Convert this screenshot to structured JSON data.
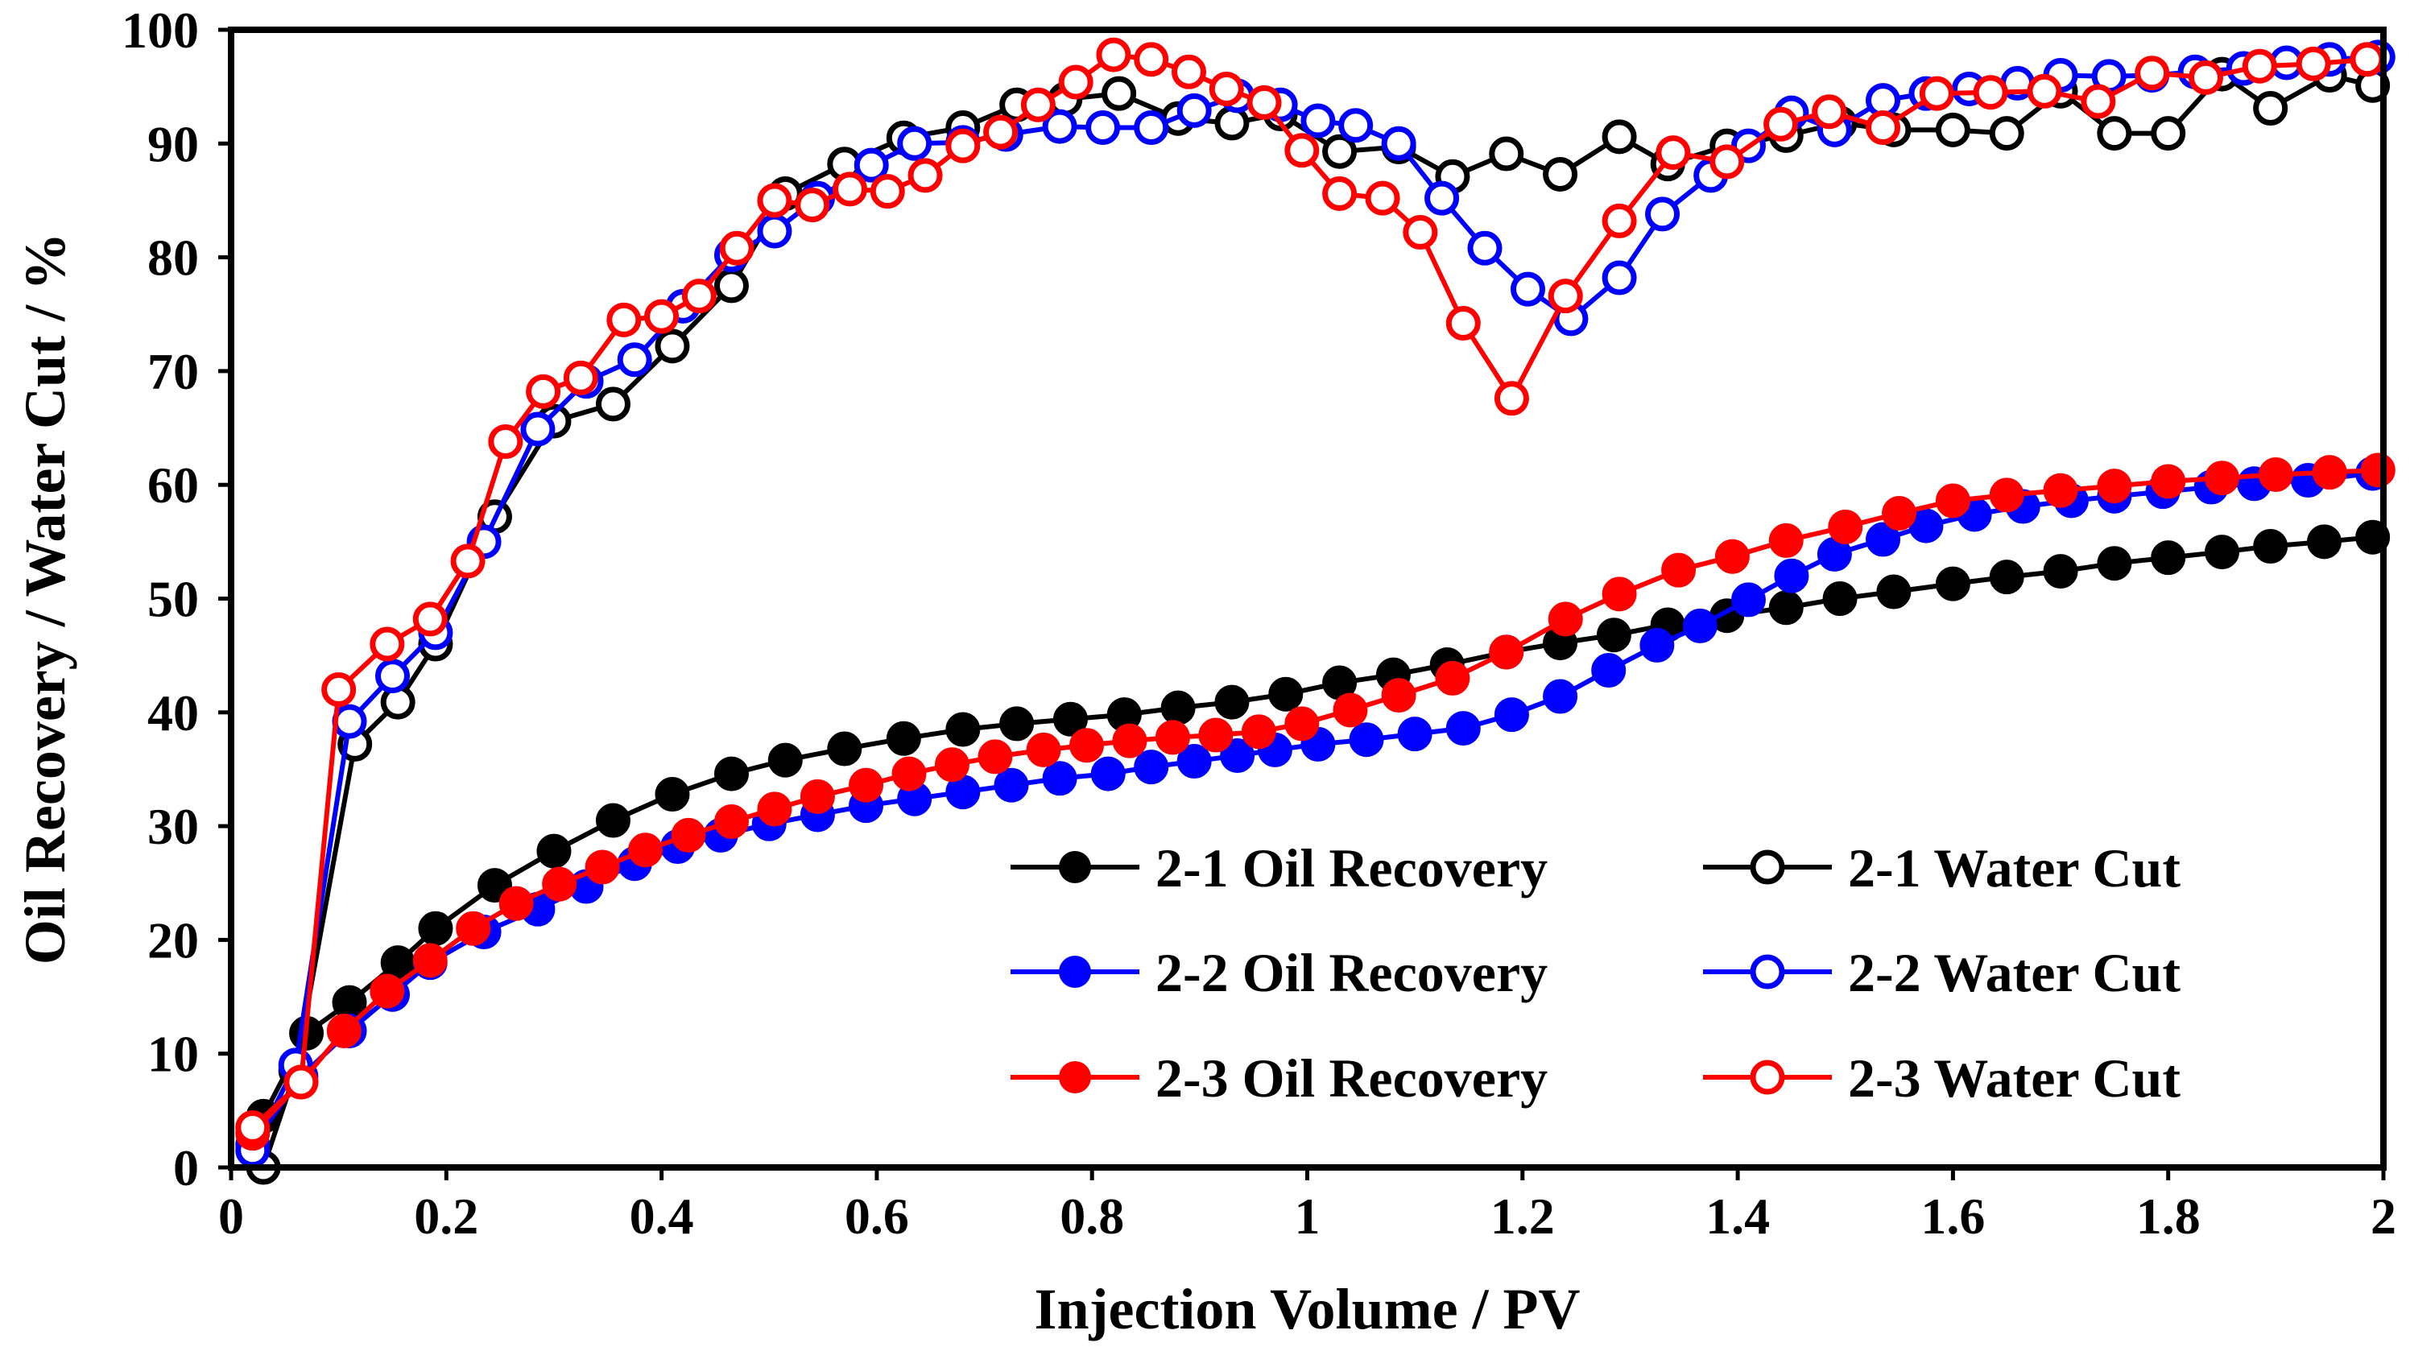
{
  "chart_data": {
    "type": "line",
    "title": "",
    "xlabel": "Injection Volume / PV",
    "ylabel": "Oil Recovery / Water Cut / %",
    "xlim": [
      0,
      2
    ],
    "ylim": [
      0,
      100
    ],
    "xticks": [
      0,
      0.2,
      0.4,
      0.6,
      0.8,
      1,
      1.2,
      1.4,
      1.6,
      1.8,
      2
    ],
    "xtick_labels": [
      "0",
      "0.2",
      "0.4",
      "0.6",
      "0.8",
      "1",
      "1.2",
      "1.4",
      "1.6",
      "1.8",
      "2"
    ],
    "yticks": [
      0,
      10,
      20,
      30,
      40,
      50,
      60,
      70,
      80,
      90,
      100
    ],
    "ytick_labels": [
      "0",
      "10",
      "20",
      "30",
      "40",
      "50",
      "60",
      "70",
      "80",
      "90",
      "100"
    ],
    "grid": false,
    "legend": "bottom-right",
    "series": [
      {
        "name": "2-1 Oil Recovery",
        "color": "#000000",
        "marker": "filled",
        "x": [
          0.03,
          0.07,
          0.11,
          0.155,
          0.19,
          0.245,
          0.3,
          0.355,
          0.41,
          0.465,
          0.515,
          0.57,
          0.625,
          0.68,
          0.73,
          0.78,
          0.83,
          0.88,
          0.93,
          0.98,
          1.03,
          1.08,
          1.13,
          1.185,
          1.235,
          1.285,
          1.335,
          1.39,
          1.445,
          1.495,
          1.545,
          1.6,
          1.65,
          1.7,
          1.75,
          1.8,
          1.85,
          1.895,
          1.945,
          1.99
        ],
        "y": [
          4.5,
          11.8,
          14.5,
          18,
          21,
          24.8,
          27.8,
          30.5,
          32.8,
          34.6,
          35.8,
          36.8,
          37.7,
          38.5,
          39,
          39.4,
          39.8,
          40.4,
          40.9,
          41.6,
          42.6,
          43.3,
          44.2,
          45.3,
          46.1,
          46.8,
          47.7,
          48.5,
          49.2,
          50,
          50.6,
          51.3,
          51.9,
          52.4,
          53.1,
          53.6,
          54.1,
          54.6,
          55,
          55.4
        ]
      },
      {
        "name": "2-1 Water Cut",
        "color": "#000000",
        "marker": "open",
        "x": [
          0.03,
          0.06,
          0.115,
          0.155,
          0.19,
          0.245,
          0.3,
          0.355,
          0.41,
          0.465,
          0.515,
          0.57,
          0.625,
          0.68,
          0.73,
          0.775,
          0.825,
          0.88,
          0.93,
          0.975,
          1.03,
          1.085,
          1.135,
          1.185,
          1.235,
          1.29,
          1.335,
          1.39,
          1.445,
          1.495,
          1.545,
          1.6,
          1.65,
          1.7,
          1.75,
          1.8,
          1.85,
          1.895,
          1.95,
          1.99
        ],
        "y": [
          0,
          8.5,
          37.2,
          40.9,
          46,
          57.2,
          65.6,
          67.1,
          72.2,
          77.5,
          85.6,
          88.2,
          90.5,
          91.4,
          93.4,
          93.9,
          94.4,
          92.2,
          91.8,
          92.6,
          89.3,
          89.7,
          87.1,
          89.1,
          87.3,
          90.6,
          88.2,
          89.8,
          90.7,
          91.8,
          91.2,
          91.2,
          90.9,
          94.6,
          90.9,
          90.9,
          96.1,
          93.1,
          96,
          95.1
        ]
      },
      {
        "name": "2-2 Oil Recovery",
        "color": "#0000ff",
        "marker": "filled",
        "x": [
          0.02,
          0.065,
          0.11,
          0.15,
          0.185,
          0.235,
          0.285,
          0.33,
          0.375,
          0.415,
          0.455,
          0.5,
          0.545,
          0.59,
          0.635,
          0.68,
          0.725,
          0.77,
          0.815,
          0.855,
          0.895,
          0.935,
          0.97,
          1.01,
          1.055,
          1.1,
          1.145,
          1.19,
          1.235,
          1.28,
          1.325,
          1.365,
          1.41,
          1.45,
          1.49,
          1.535,
          1.575,
          1.62,
          1.665,
          1.71,
          1.75,
          1.795,
          1.84,
          1.88,
          1.93,
          1.99
        ],
        "y": [
          2,
          8,
          12,
          15.2,
          18,
          20.7,
          22.7,
          24.7,
          26.7,
          28.2,
          29.2,
          30.2,
          31,
          31.8,
          32.4,
          33,
          33.6,
          34.2,
          34.6,
          35.2,
          35.7,
          36.2,
          36.7,
          37.2,
          37.6,
          38.1,
          38.6,
          39.8,
          41.4,
          43.7,
          45.9,
          47.6,
          49.9,
          52,
          53.9,
          55.2,
          56.4,
          57.4,
          58.1,
          58.6,
          59,
          59.4,
          59.8,
          60.1,
          60.4,
          61
        ]
      },
      {
        "name": "2-2 Water Cut",
        "color": "#0000ff",
        "marker": "open",
        "x": [
          0.02,
          0.06,
          0.11,
          0.15,
          0.19,
          0.235,
          0.285,
          0.33,
          0.375,
          0.42,
          0.465,
          0.505,
          0.545,
          0.595,
          0.635,
          0.68,
          0.72,
          0.77,
          0.81,
          0.855,
          0.895,
          0.935,
          0.975,
          1.01,
          1.045,
          1.085,
          1.125,
          1.165,
          1.205,
          1.245,
          1.29,
          1.33,
          1.375,
          1.41,
          1.45,
          1.49,
          1.535,
          1.575,
          1.615,
          1.66,
          1.7,
          1.745,
          1.785,
          1.825,
          1.87,
          1.91,
          1.95,
          1.995
        ],
        "y": [
          1.5,
          9,
          39.2,
          43.2,
          47,
          55,
          64.9,
          69.1,
          71,
          75.7,
          80.2,
          82.3,
          85.2,
          88.1,
          90,
          90.1,
          90.8,
          91.5,
          91.4,
          91.4,
          92.9,
          94.2,
          93.4,
          92,
          91.6,
          90,
          85.2,
          80.8,
          77.2,
          74.6,
          78.2,
          83.8,
          87.2,
          89.8,
          92.7,
          91.2,
          93.8,
          94.4,
          94.8,
          95.3,
          96,
          95.9,
          96,
          96.3,
          96.6,
          97.1,
          97.4,
          97.6
        ]
      },
      {
        "name": "2-3 Oil Recovery",
        "color": "#ff0000",
        "marker": "filled",
        "x": [
          0.02,
          0.065,
          0.105,
          0.145,
          0.185,
          0.225,
          0.265,
          0.305,
          0.345,
          0.385,
          0.425,
          0.465,
          0.505,
          0.545,
          0.59,
          0.63,
          0.67,
          0.71,
          0.755,
          0.795,
          0.835,
          0.875,
          0.915,
          0.955,
          0.995,
          1.04,
          1.085,
          1.135,
          1.185,
          1.24,
          1.29,
          1.345,
          1.395,
          1.445,
          1.5,
          1.55,
          1.6,
          1.65,
          1.7,
          1.75,
          1.8,
          1.85,
          1.9,
          1.95,
          1.995
        ],
        "y": [
          3,
          7.5,
          12,
          15.5,
          18.2,
          21,
          23.2,
          24.9,
          26.4,
          27.9,
          29.2,
          30.4,
          31.5,
          32.6,
          33.6,
          34.6,
          35.4,
          36.1,
          36.7,
          37.1,
          37.5,
          37.8,
          38,
          38.3,
          39,
          40.2,
          41.5,
          43,
          45.3,
          48.2,
          50.4,
          52.5,
          53.7,
          55.1,
          56.3,
          57.5,
          58.6,
          59.1,
          59.5,
          59.9,
          60.3,
          60.6,
          60.9,
          61.1,
          61.3
        ]
      },
      {
        "name": "2-3 Water Cut",
        "color": "#ff0000",
        "marker": "open",
        "x": [
          0.02,
          0.065,
          0.1,
          0.145,
          0.185,
          0.22,
          0.255,
          0.29,
          0.325,
          0.365,
          0.4,
          0.435,
          0.47,
          0.505,
          0.54,
          0.575,
          0.61,
          0.645,
          0.68,
          0.715,
          0.75,
          0.785,
          0.82,
          0.855,
          0.89,
          0.925,
          0.96,
          0.995,
          1.03,
          1.07,
          1.105,
          1.145,
          1.19,
          1.24,
          1.29,
          1.34,
          1.39,
          1.44,
          1.485,
          1.535,
          1.585,
          1.635,
          1.685,
          1.735,
          1.785,
          1.835,
          1.885,
          1.935,
          1.985
        ],
        "y": [
          3.5,
          7.5,
          42,
          46,
          48.2,
          53.3,
          63.8,
          68.2,
          69.4,
          74.5,
          74.8,
          76.6,
          80.8,
          85,
          84.6,
          86,
          85.8,
          87.2,
          89.8,
          91,
          93.4,
          95.4,
          97.8,
          97.4,
          96.3,
          94.8,
          93.6,
          89.4,
          85.6,
          85.2,
          82.2,
          74.2,
          67.6,
          76.6,
          83.2,
          89.2,
          88.4,
          91.7,
          92.8,
          91.4,
          94.4,
          94.5,
          94.6,
          93.7,
          96.2,
          95.8,
          96.8,
          97,
          97.4
        ]
      }
    ]
  }
}
